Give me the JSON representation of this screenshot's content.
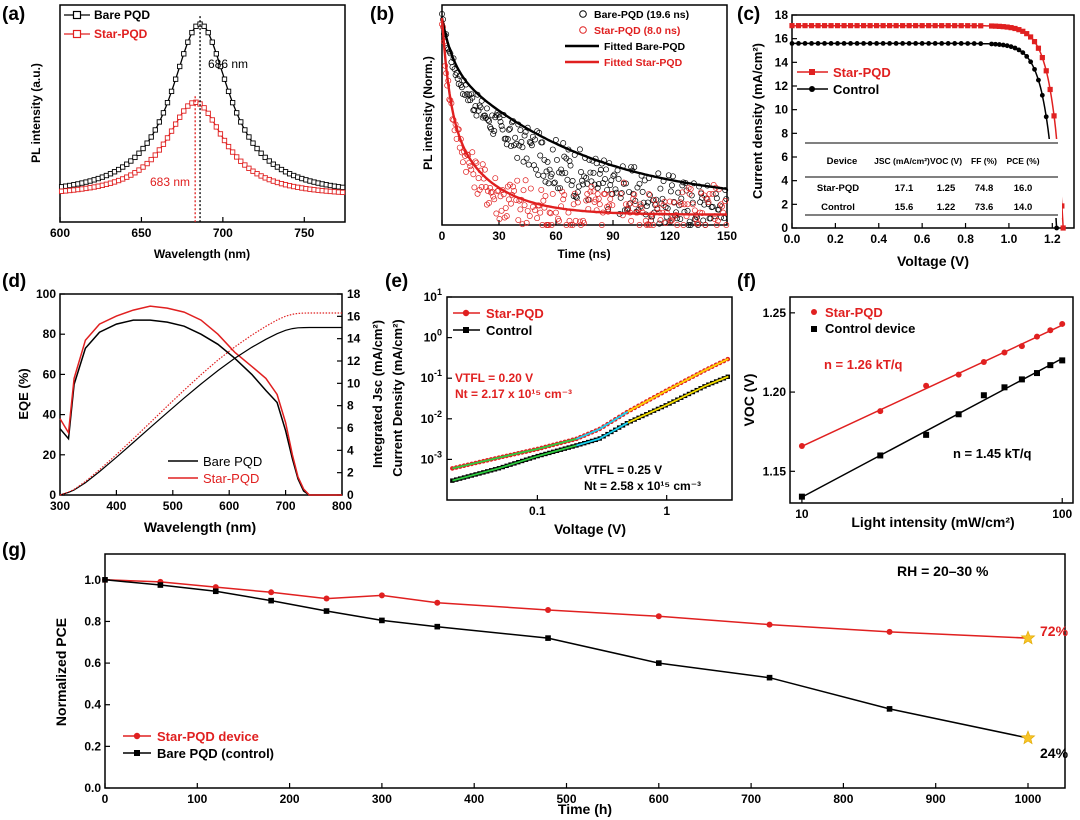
{
  "figure": {
    "labels": [
      "(a)",
      "(b)",
      "(c)",
      "(d)",
      "(e)",
      "(f)",
      "(g)"
    ]
  },
  "chart_data": [
    {
      "id": "a",
      "type": "line",
      "panel_label": "(a)",
      "xlabel": "Wavelength (nm)",
      "ylabel": "PL intensity (a.u.)",
      "xlim": [
        600,
        775
      ],
      "ylim": [
        0,
        1.25
      ],
      "xticks": [
        600,
        650,
        700,
        750
      ],
      "series": [
        {
          "name": "Bare PQD",
          "color": "#000000",
          "marker": "open-square",
          "peak": 686,
          "amplitude": 1.0,
          "gamma": 22,
          "baseline": 0.14
        },
        {
          "name": "Star-PQD",
          "color": "#e02020",
          "marker": "open-square",
          "peak": 683,
          "amplitude": 0.55,
          "gamma": 22,
          "baseline": 0.14
        }
      ],
      "annotations": [
        {
          "text": "686 nm",
          "color": "#000000",
          "x": 686
        },
        {
          "text": "683 nm",
          "color": "#e02020",
          "x": 683
        }
      ]
    },
    {
      "id": "b",
      "type": "scatter",
      "panel_label": "(b)",
      "xlabel": "Time (ns)",
      "ylabel": "PL intensity (Norm.)",
      "xlim": [
        0,
        150
      ],
      "ylim": [
        0,
        1
      ],
      "xticks": [
        0,
        30,
        60,
        90,
        120,
        150
      ],
      "series": [
        {
          "name": "Bare-PQD (19.6 ns)",
          "color": "#000000",
          "marker": "open-circle",
          "a1": 0.25,
          "t1": 6,
          "a2": 0.75,
          "t2": 65,
          "floor": 0.1
        },
        {
          "name": "Star-PQD (8.0 ns)",
          "color": "#e02020",
          "marker": "open-circle",
          "a1": 0.45,
          "t1": 4,
          "a2": 0.55,
          "t2": 22,
          "floor": 0.05
        }
      ],
      "fits": [
        {
          "name": "Fitted Bare-PQD",
          "color": "#000000"
        },
        {
          "name": "Fitted Star-PQD",
          "color": "#e02020"
        }
      ]
    },
    {
      "id": "c",
      "type": "line",
      "panel_label": "(c)",
      "xlabel": "Voltage (V)",
      "ylabel": "Current density (mA/cm²)",
      "xlim": [
        0,
        1.3
      ],
      "ylim": [
        0,
        18
      ],
      "xticks": [
        0.0,
        0.2,
        0.4,
        0.6,
        0.8,
        1.0,
        1.2
      ],
      "yticks": [
        0,
        2,
        4,
        6,
        8,
        10,
        12,
        14,
        16,
        18
      ],
      "series": [
        {
          "name": "Star-PQD",
          "color": "#e02020",
          "marker": "square",
          "jsc": 17.1,
          "voc": 1.25,
          "n": 0.052
        },
        {
          "name": "Control",
          "color": "#000000",
          "marker": "circle",
          "jsc": 15.6,
          "voc": 1.22,
          "n": 0.052
        }
      ],
      "table": {
        "headers": [
          "Device",
          "JSC (mA/cm²)",
          "VOC (V)",
          "FF (%)",
          "PCE (%)"
        ],
        "rows": [
          {
            "device": "Star-PQD",
            "jsc": "17.1",
            "voc": "1.25",
            "ff": "74.8",
            "pce": "16.0"
          },
          {
            "device": "Control",
            "jsc": "15.6",
            "voc": "1.22",
            "ff": "73.6",
            "pce": "14.0"
          }
        ]
      }
    },
    {
      "id": "d",
      "type": "line",
      "panel_label": "(d)",
      "xlabel": "Wavelength (nm)",
      "ylabel": "EQE (%)",
      "ylabel_right": "Integrated Jsc (mA/cm²)",
      "xlim": [
        300,
        800
      ],
      "ylim": [
        0,
        100
      ],
      "ylim_right": [
        0,
        18
      ],
      "xticks": [
        300,
        400,
        500,
        600,
        700,
        800
      ],
      "yticks": [
        0,
        20,
        40,
        60,
        80,
        100
      ],
      "yticks_right": [
        0,
        2,
        4,
        6,
        8,
        10,
        12,
        14,
        16,
        18
      ],
      "series": [
        {
          "name": "Bare PQD",
          "color": "#000000",
          "x": [
            300,
            315,
            325,
            345,
            370,
            400,
            430,
            460,
            490,
            520,
            550,
            580,
            610,
            640,
            665,
            685,
            700,
            712,
            722,
            732,
            742,
            760,
            800
          ],
          "y": [
            33,
            28,
            55,
            73,
            81,
            85,
            87,
            87,
            86,
            84,
            80,
            75,
            68,
            60,
            52,
            46,
            32,
            18,
            8,
            2,
            0,
            0,
            0
          ]
        },
        {
          "name": "Star-PQD",
          "color": "#e02020",
          "x": [
            300,
            315,
            325,
            345,
            370,
            400,
            430,
            460,
            490,
            520,
            550,
            580,
            610,
            640,
            665,
            685,
            700,
            712,
            722,
            732,
            742,
            760,
            800
          ],
          "y": [
            38,
            31,
            58,
            77,
            85,
            89,
            92,
            94,
            93,
            91,
            87,
            80,
            71,
            64,
            58,
            50,
            36,
            20,
            9,
            3,
            0,
            0,
            0
          ]
        }
      ],
      "integrated": [
        {
          "name": "Bare PQD",
          "color": "#000000",
          "style": "solid",
          "final": 15.0
        },
        {
          "name": "Star-PQD",
          "color": "#e02020",
          "style": "dotted",
          "final": 16.3
        }
      ]
    },
    {
      "id": "e",
      "type": "line",
      "panel_label": "(e)",
      "xlabel": "Voltage (V)",
      "ylabel": "Current Density (mA/cm²)",
      "xscale": "log",
      "yscale": "log",
      "xlim": [
        0.02,
        3.2
      ],
      "ylim": [
        0.0001,
        10
      ],
      "xticks": [
        0.1,
        1
      ],
      "xtick_labels": [
        "0.1",
        "1"
      ],
      "yticks": [
        0.001,
        0.01,
        0.1,
        1,
        10
      ],
      "series": [
        {
          "name": "Star-PQD",
          "color": "#e02020",
          "x": [
            0.022,
            0.05,
            0.1,
            0.2,
            0.3,
            0.5,
            1.0,
            2.0,
            3.0
          ],
          "y": [
            0.0006,
            0.0011,
            0.0018,
            0.0032,
            0.0055,
            0.015,
            0.05,
            0.16,
            0.3
          ]
        },
        {
          "name": "Control",
          "color": "#000000",
          "x": [
            0.022,
            0.05,
            0.1,
            0.2,
            0.3,
            0.5,
            1.0,
            2.0,
            3.0
          ],
          "y": [
            0.0003,
            0.0006,
            0.0012,
            0.0022,
            0.0032,
            0.008,
            0.022,
            0.065,
            0.11
          ]
        }
      ],
      "annotations": [
        {
          "color": "#e02020",
          "vtfl": "VTFL = 0.20 V",
          "nt": "Nt = 2.17 x 10¹⁵ cm⁻³"
        },
        {
          "color": "#000000",
          "vtfl": "VTFL = 0.25 V",
          "nt": "Nt = 2.58 x 10¹⁵ cm⁻³"
        }
      ]
    },
    {
      "id": "f",
      "type": "scatter",
      "panel_label": "(f)",
      "xlabel": "Light intensity (mW/cm²)",
      "ylabel": "VOC (V)",
      "xscale": "log",
      "xlim": [
        9,
        110
      ],
      "ylim": [
        1.13,
        1.26
      ],
      "xticks": [
        10,
        100
      ],
      "yticks": [
        1.15,
        1.2,
        1.25
      ],
      "series": [
        {
          "name": "Star-PQD",
          "color": "#e02020",
          "marker": "circle",
          "x": [
            10,
            20,
            30,
            40,
            50,
            60,
            70,
            80,
            90,
            100
          ],
          "y": [
            1.166,
            1.188,
            1.204,
            1.211,
            1.219,
            1.225,
            1.229,
            1.235,
            1.239,
            1.243
          ]
        },
        {
          "name": "Control device",
          "color": "#000000",
          "marker": "square",
          "x": [
            10,
            20,
            30,
            40,
            50,
            60,
            70,
            80,
            90,
            100
          ],
          "y": [
            1.134,
            1.16,
            1.173,
            1.186,
            1.198,
            1.203,
            1.208,
            1.212,
            1.217,
            1.22
          ]
        }
      ],
      "annotations": [
        {
          "text": "n = 1.26 kT/q",
          "color": "#e02020"
        },
        {
          "text": "n = 1.45 kT/q",
          "color": "#000000"
        }
      ]
    },
    {
      "id": "g",
      "type": "line",
      "panel_label": "(g)",
      "xlabel": "Time (h)",
      "ylabel": "Normalized PCE",
      "xlim": [
        0,
        1000
      ],
      "ylim": [
        0,
        1.1
      ],
      "xticks": [
        0,
        100,
        200,
        300,
        400,
        500,
        600,
        700,
        800,
        900,
        1000
      ],
      "yticks": [
        0.0,
        0.2,
        0.4,
        0.6,
        0.8,
        1.0
      ],
      "series": [
        {
          "name": "Star-PQD device",
          "color": "#e02020",
          "marker": "circle",
          "x": [
            0,
            60,
            120,
            180,
            240,
            300,
            360,
            480,
            600,
            720,
            850,
            1000
          ],
          "y": [
            1.0,
            0.99,
            0.965,
            0.94,
            0.91,
            0.925,
            0.89,
            0.855,
            0.825,
            0.785,
            0.75,
            0.72
          ]
        },
        {
          "name": "Bare PQD (control)",
          "color": "#000000",
          "marker": "square",
          "x": [
            0,
            60,
            120,
            180,
            240,
            300,
            360,
            480,
            600,
            720,
            850,
            1000
          ],
          "y": [
            1.0,
            0.975,
            0.945,
            0.9,
            0.85,
            0.805,
            0.775,
            0.72,
            0.6,
            0.53,
            0.38,
            0.24
          ]
        }
      ],
      "annotations": [
        {
          "text": "RH = 20–30 %",
          "color": "#000000"
        },
        {
          "text": "72%",
          "color": "#e02020",
          "x": 1000,
          "y": 0.72
        },
        {
          "text": "24%",
          "color": "#000000",
          "x": 1000,
          "y": 0.24
        }
      ]
    }
  ]
}
